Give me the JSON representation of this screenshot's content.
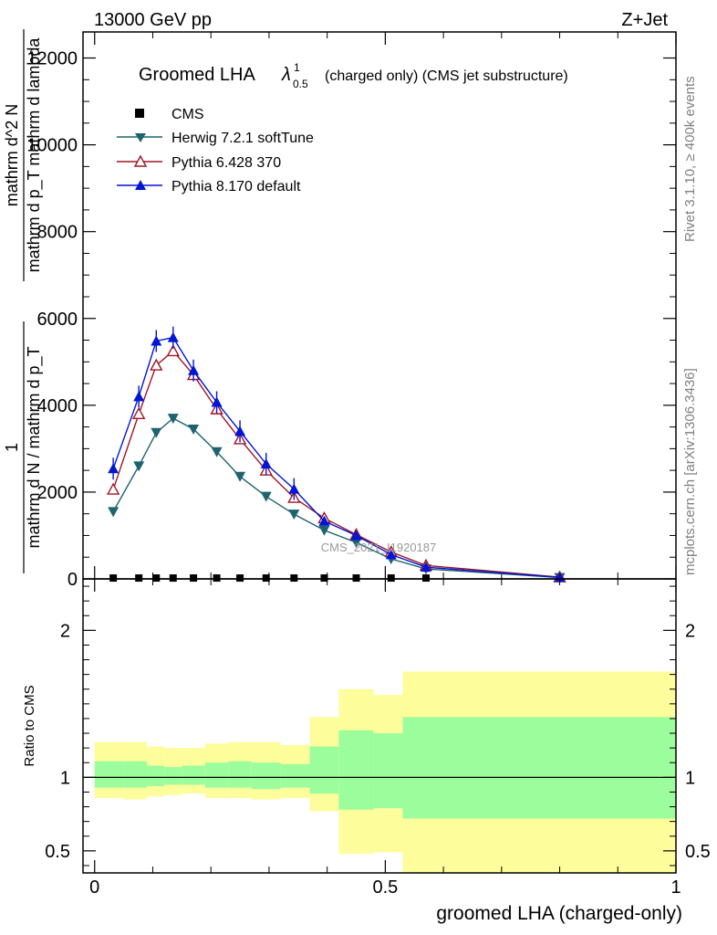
{
  "header": {
    "left": "13000 GeV pp",
    "right": "Z+Jet"
  },
  "side": {
    "rivet": "Rivet 3.1.10, ≥ 400k events",
    "mcplots": "mcplots.cern.ch [arXiv:1306.3436]"
  },
  "main_plot": {
    "title_main": "Groomed LHA",
    "title_lambda": "λ",
    "title_sup": "1",
    "title_sub": "0.5",
    "title_extra": "(charged only) (CMS jet substructure)",
    "ylabel_numerator": "1",
    "ylabel_denominator": "mathrm d N / mathrm d p_T",
    "ylabel_num2": "mathrm d^2 N",
    "ylabel_den2": "mathrm d p_T mathrm d lambda",
    "watermark": "CMS_2021_I1920187"
  },
  "ratio_plot": {
    "ylabel": "Ratio to CMS",
    "xlabel": "groomed LHA (charged-only)"
  },
  "colors": {
    "cms": "#000000",
    "herwig": "#1d6370",
    "pythia6": "#a01525",
    "pythia8": "#0016d4",
    "band_outer": "#fdfd9c",
    "band_inner": "#9cfd9c"
  },
  "chart_data": [
    {
      "type": "line",
      "title": "Groomed LHA λ^1_0.5 (charged only) (CMS jet substructure)",
      "xlabel": "groomed LHA (charged-only)",
      "ylabel": "1 / (dN/dp_T) d²N/(dp_T dλ)",
      "xlim": [
        -0.02,
        1.0
      ],
      "ylim": [
        0,
        12600
      ],
      "yticks": [
        0,
        2000,
        4000,
        6000,
        8000,
        10000,
        12000
      ],
      "ytick_labels": [
        "0",
        "2000",
        "4000",
        "6000",
        "8000",
        "10000",
        "12000"
      ],
      "legend_position": "top-left",
      "x": [
        0.032,
        0.076,
        0.106,
        0.135,
        0.17,
        0.21,
        0.25,
        0.295,
        0.343,
        0.395,
        0.45,
        0.51,
        0.57,
        0.8
      ],
      "series": [
        {
          "name": "CMS",
          "marker": "square",
          "values": [
            20,
            20,
            20,
            20,
            20,
            20,
            20,
            20,
            20,
            20,
            20,
            20,
            20,
            20
          ]
        },
        {
          "name": "Herwig 7.2.1 softTune",
          "marker": "triangle-down",
          "values": [
            1550,
            2600,
            3370,
            3700,
            3450,
            2930,
            2360,
            1900,
            1490,
            1120,
            840,
            460,
            230,
            30
          ]
        },
        {
          "name": "Pythia 6.428 370",
          "marker": "triangle-up-open",
          "values": [
            2060,
            3800,
            4920,
            5250,
            4700,
            3910,
            3220,
            2500,
            1870,
            1400,
            1020,
            620,
            310,
            40
          ]
        },
        {
          "name": "Pythia 8.170 default",
          "marker": "triangle-up",
          "values": [
            2540,
            4200,
            5480,
            5560,
            4800,
            4070,
            3400,
            2650,
            2070,
            1330,
            1000,
            560,
            270,
            35
          ]
        }
      ]
    },
    {
      "type": "area",
      "title": "Ratio to CMS",
      "xlabel": "groomed LHA (charged-only)",
      "ylabel": "Ratio to CMS",
      "xlim": [
        -0.02,
        1.0
      ],
      "ylim": [
        0.35,
        2.35
      ],
      "yticks": [
        0.5,
        1,
        2
      ],
      "ytick_labels": [
        "0.5",
        "1",
        "2"
      ],
      "xticks": [
        0,
        0.5,
        1
      ],
      "xtick_labels": [
        "0",
        "0.5",
        "1"
      ],
      "reference_line": 1,
      "bin_edges": [
        0.0,
        0.05,
        0.09,
        0.12,
        0.15,
        0.19,
        0.23,
        0.27,
        0.32,
        0.37,
        0.42,
        0.48,
        0.53,
        1.0
      ],
      "series": [
        {
          "name": "outer band upper",
          "values": [
            1.24,
            1.24,
            1.21,
            1.2,
            1.2,
            1.23,
            1.24,
            1.24,
            1.22,
            1.41,
            1.6,
            1.56,
            1.72
          ]
        },
        {
          "name": "outer band lower",
          "values": [
            0.86,
            0.85,
            0.87,
            0.88,
            0.89,
            0.86,
            0.86,
            0.85,
            0.86,
            0.77,
            0.48,
            0.49,
            0.35
          ]
        },
        {
          "name": "inner band upper",
          "values": [
            1.11,
            1.11,
            1.08,
            1.07,
            1.08,
            1.1,
            1.11,
            1.1,
            1.09,
            1.21,
            1.32,
            1.3,
            1.41
          ]
        },
        {
          "name": "inner band lower",
          "values": [
            0.93,
            0.93,
            0.94,
            0.95,
            0.95,
            0.93,
            0.93,
            0.92,
            0.93,
            0.89,
            0.78,
            0.79,
            0.72
          ]
        }
      ]
    }
  ]
}
